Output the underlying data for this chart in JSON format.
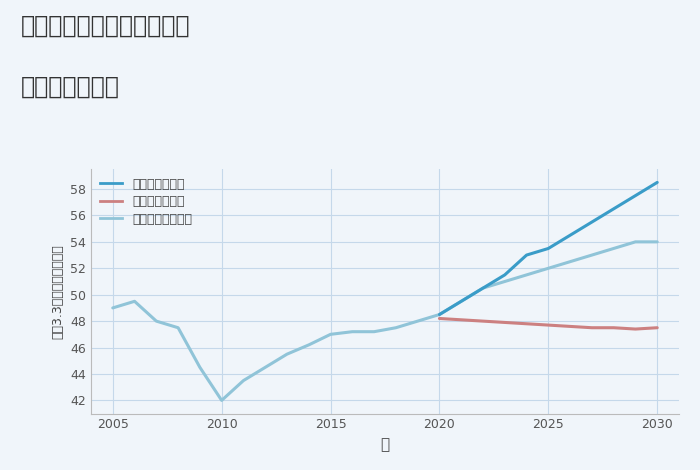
{
  "title_line1": "大阪府堺市堺区柳之町東の",
  "title_line2": "土地の価格推移",
  "xlabel": "年",
  "ylabel": "坪（3.3㎡）単価（万円）",
  "ylim": [
    41,
    59.5
  ],
  "xlim": [
    2004,
    2031
  ],
  "yticks": [
    42,
    44,
    46,
    48,
    50,
    52,
    54,
    56,
    58
  ],
  "xticks": [
    2005,
    2010,
    2015,
    2020,
    2025,
    2030
  ],
  "background_color": "#f0f5fa",
  "plot_bg_color": "#f0f5fa",
  "grid_color": "#c5d8ea",
  "normal_scenario": {
    "label": "ノーマルシナリオ",
    "color": "#90c4d8",
    "linewidth": 2.2,
    "x": [
      2005,
      2006,
      2007,
      2008,
      2009,
      2010,
      2011,
      2012,
      2013,
      2014,
      2015,
      2016,
      2017,
      2018,
      2019,
      2020,
      2021,
      2022,
      2023,
      2024,
      2025,
      2026,
      2027,
      2028,
      2029,
      2030
    ],
    "y": [
      49.0,
      49.5,
      48.0,
      47.5,
      44.5,
      42.0,
      43.5,
      44.5,
      45.5,
      46.2,
      47.0,
      47.2,
      47.2,
      47.5,
      48.0,
      48.5,
      49.5,
      50.5,
      51.0,
      51.5,
      52.0,
      52.5,
      53.0,
      53.5,
      54.0,
      54.0
    ]
  },
  "good_scenario": {
    "label": "グッドシナリオ",
    "color": "#3a9cc8",
    "linewidth": 2.2,
    "x": [
      2020,
      2021,
      2022,
      2023,
      2024,
      2025,
      2026,
      2027,
      2028,
      2029,
      2030
    ],
    "y": [
      48.5,
      49.5,
      50.5,
      51.5,
      53.0,
      53.5,
      54.5,
      55.5,
      56.5,
      57.5,
      58.5
    ]
  },
  "bad_scenario": {
    "label": "バッドシナリオ",
    "color": "#cc8080",
    "linewidth": 2.2,
    "x": [
      2020,
      2021,
      2022,
      2023,
      2024,
      2025,
      2026,
      2027,
      2028,
      2029,
      2030
    ],
    "y": [
      48.2,
      48.1,
      48.0,
      47.9,
      47.8,
      47.7,
      47.6,
      47.5,
      47.5,
      47.4,
      47.5
    ]
  }
}
